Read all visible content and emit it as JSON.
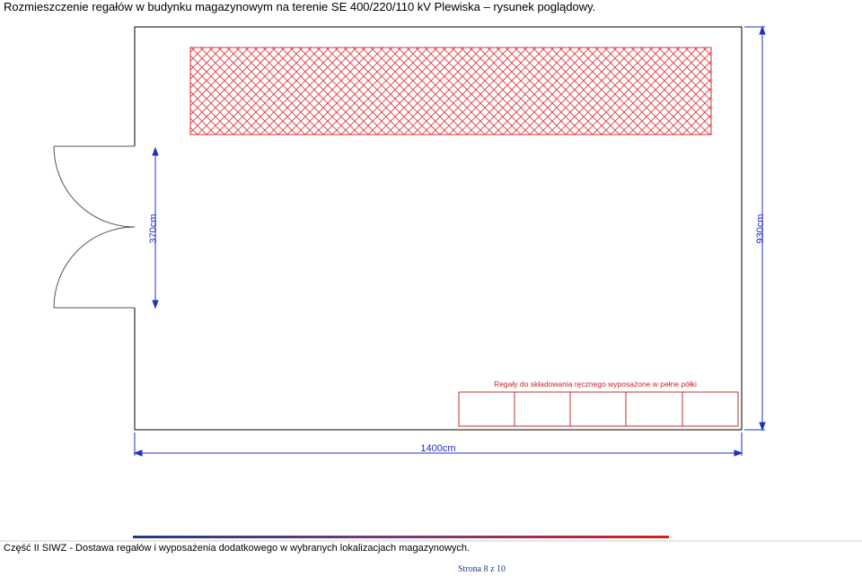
{
  "header": {
    "title": "Rozmieszczenie regałów w budynku magazynowym na terenie SE 400/220/110 kV Plewiska – rysunek poglądowy."
  },
  "drawing": {
    "door_width": "370cm",
    "room_depth": "930cm",
    "room_length": "1400cm",
    "shelves_label": "Regały do składowania ręcznego wyposażone w pełne półki"
  },
  "footer": {
    "text": "Część II SIWZ - Dostawa regałów i wyposażenia dodatkowego w wybranych lokalizacjach magazynowych.",
    "page": "Strona 8 z 10"
  }
}
